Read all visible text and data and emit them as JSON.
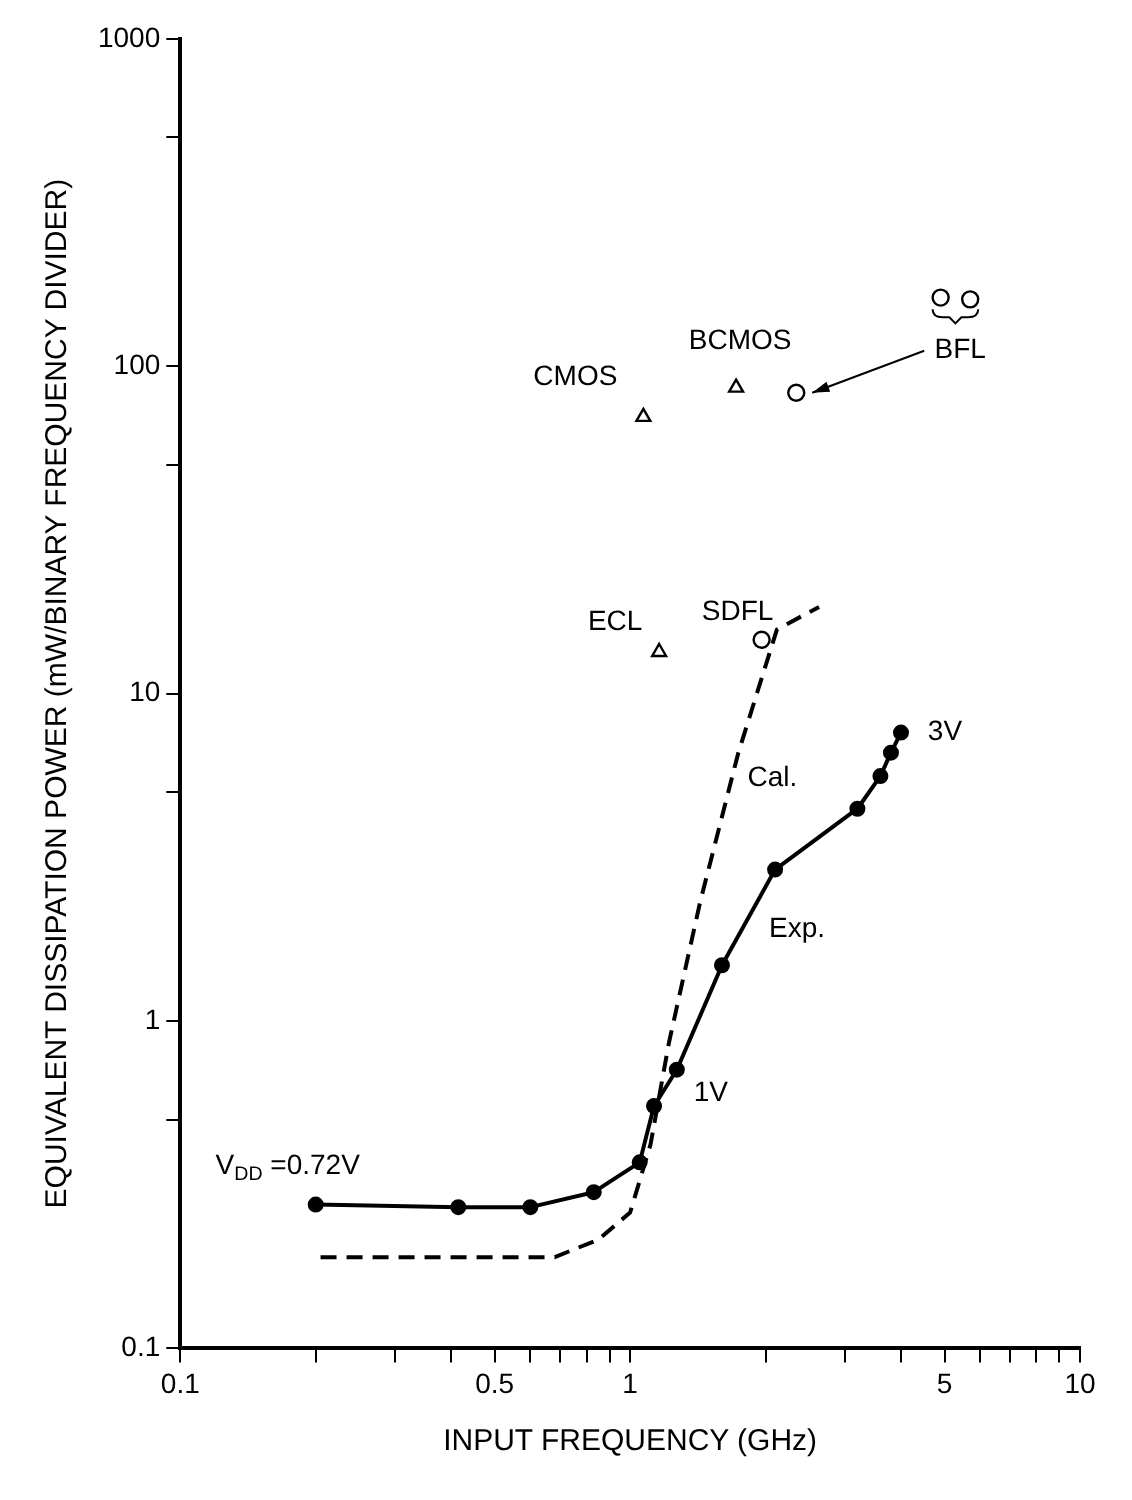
{
  "chart_data": {
    "type": "line",
    "xlabel": "INPUT FREQUENCY (GHz)",
    "ylabel": "EQUIVALENT DISSIPATION POWER (mW/BINARY FREQUENCY DIVIDER)",
    "log": "xy",
    "grid": false,
    "legend": false,
    "xlim": [
      0.1,
      10
    ],
    "ylim": [
      0.1,
      1000
    ],
    "xticks": [
      0.1,
      {
        "value": 0.2,
        "label": null
      },
      {
        "value": 0.3,
        "label": null
      },
      {
        "value": 0.4,
        "label": null
      },
      0.5,
      {
        "value": 0.6,
        "label": null
      },
      {
        "value": 0.7,
        "label": null
      },
      {
        "value": 0.8,
        "label": null
      },
      {
        "value": 0.9,
        "label": null
      },
      1,
      {
        "value": 2,
        "label": null
      },
      {
        "value": 3,
        "label": null
      },
      {
        "value": 4,
        "label": null
      },
      5,
      {
        "value": 6,
        "label": null
      },
      {
        "value": 7,
        "label": null
      },
      {
        "value": 8,
        "label": null
      },
      {
        "value": 9,
        "label": null
      },
      10
    ],
    "yticks": [
      0.1,
      {
        "value": 0.5,
        "label": null
      },
      1,
      {
        "value": 5,
        "label": null
      },
      10,
      {
        "value": 50,
        "label": null
      },
      100,
      {
        "value": 500,
        "label": null
      },
      1000
    ],
    "series": [
      {
        "color": "#000000",
        "marker": "circle",
        "line_style": "solid",
        "x": [
          0.2,
          0.415,
          0.6,
          0.83,
          1.05,
          1.13,
          1.27,
          1.6,
          2.1,
          3.2,
          3.6,
          3.8,
          4.0
        ],
        "values": [
          0.275,
          0.27,
          0.27,
          0.3,
          0.37,
          0.55,
          0.71,
          1.48,
          2.9,
          4.45,
          5.6,
          6.6,
          7.6
        ]
      },
      {
        "color": "#000000",
        "marker": "none",
        "line_style": "dashed",
        "x": [
          0.205,
          0.68,
          0.85,
          1.0,
          1.11,
          1.22,
          1.43,
          1.74,
          2.12,
          2.63
        ],
        "values": [
          0.19,
          0.19,
          0.215,
          0.26,
          0.42,
          0.86,
          2.3,
          6.6,
          15.7,
          18.4
        ]
      },
      {
        "type": "scatter",
        "color": "#000000",
        "marker": "triangle",
        "x": [
          1.07,
          1.72,
          1.16
        ],
        "values": [
          70,
          86,
          13.4
        ]
      },
      {
        "type": "scatter",
        "color": "#000000",
        "marker": "circle",
        "x": [
          2.34,
          4.9,
          5.7,
          1.96
        ],
        "values": [
          83,
          162,
          160,
          14.6
        ]
      }
    ],
    "annotations": [
      {
        "text": "CMOS",
        "x": 1.07,
        "y": 70
      },
      {
        "text": "BCMOS",
        "x": 1.72,
        "y": 86
      },
      {
        "text": "BFL",
        "x": 2.34,
        "y": 83
      },
      {
        "text": "ECL",
        "x": 1.16,
        "y": 13.4
      },
      {
        "text": "SDFL",
        "x": 1.96,
        "y": 14.6
      },
      {
        "text": "Cal.",
        "x": 1.74,
        "y": 6.6
      },
      {
        "text": "Exp.",
        "x": 2.1,
        "y": 2.9
      },
      {
        "text": "1V",
        "x": 1.27,
        "y": 0.71
      },
      {
        "text": "3V",
        "x": 4.0,
        "y": 7.6
      },
      {
        "text": "V$_{DD}$ =0.72V",
        "x": 0.2,
        "y": 0.275
      }
    ]
  }
}
